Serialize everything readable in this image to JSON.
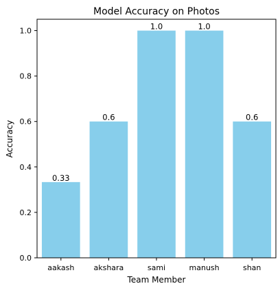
{
  "chart_data": {
    "type": "bar",
    "title": "Model Accuracy on Photos",
    "xlabel": "Team Member",
    "ylabel": "Accuracy",
    "categories": [
      "aakash",
      "akshara",
      "sami",
      "manush",
      "shan"
    ],
    "values": [
      0.3333,
      0.6,
      1.0,
      1.0,
      0.6
    ],
    "data_labels": [
      "0.33",
      "0.6",
      "1.0",
      "1.0",
      "0.6"
    ],
    "yticks": [
      0.0,
      0.2,
      0.4,
      0.6,
      0.8,
      1.0
    ],
    "ytick_labels": [
      "0.0",
      "0.2",
      "0.4",
      "0.6",
      "0.8",
      "1.0"
    ],
    "ylim": [
      0,
      1.05
    ],
    "bar_color": "#87CEEB",
    "grid": false,
    "legend": "none"
  }
}
